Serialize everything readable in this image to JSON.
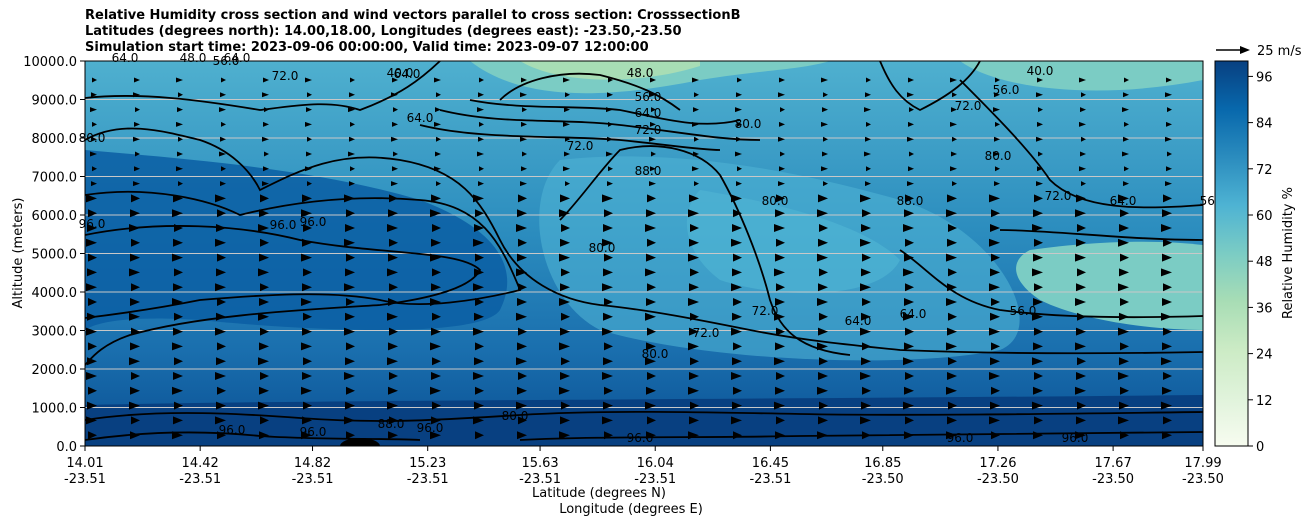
{
  "title_lines": [
    "Relative Humidity cross section and wind vectors parallel to cross section: CrosssectionB",
    "Latitudes (degrees north): 14.00,18.00, Longitudes (degrees east): -23.50,-23.50",
    "Simulation start time: 2023-09-06 00:00:00, Valid time: 2023-09-07 12:00:00"
  ],
  "chart_data": {
    "type": "heatmap",
    "ylabel": "Altitude (meters)",
    "xlabel_lines": [
      "Latitude (degrees N)",
      "Longitude (degrees E)"
    ],
    "ylim": [
      0,
      10000
    ],
    "yticks": [
      0,
      1000,
      2000,
      3000,
      4000,
      5000,
      6000,
      7000,
      8000,
      9000,
      10000
    ],
    "ytick_labels": [
      "0.0",
      "1000.0",
      "2000.0",
      "3000.0",
      "4000.0",
      "5000.0",
      "6000.0",
      "7000.0",
      "8000.0",
      "9000.0",
      "10000.0"
    ],
    "xlim": [
      14.01,
      17.99
    ],
    "xticks_lat": [
      "14.01",
      "14.42",
      "14.82",
      "15.23",
      "15.63",
      "16.04",
      "16.45",
      "16.85",
      "17.26",
      "17.67",
      "17.99"
    ],
    "xticks_lon": [
      "-23.51",
      "-23.51",
      "-23.51",
      "-23.51",
      "-23.51",
      "-23.51",
      "-23.51",
      "-23.50",
      "-23.50",
      "-23.50",
      "-23.50"
    ],
    "grid": "horizontal",
    "colorbar": {
      "label": "Relative Humidity %",
      "range": [
        0,
        100
      ],
      "ticks": [
        "0",
        "12",
        "24",
        "36",
        "48",
        "60",
        "72",
        "84",
        "96"
      ],
      "colormap": [
        "#f7fcf0",
        "#e0f3db",
        "#ccebc5",
        "#a8ddb5",
        "#7bccc4",
        "#4eb3d3",
        "#2b8cbe",
        "#0868ac",
        "#084081"
      ]
    },
    "wind_key": {
      "label": "25 m/s",
      "speed": 25
    },
    "contour_labels": [
      "40.0",
      "48.0",
      "56.0",
      "64.0",
      "72.0",
      "80.0",
      "88.0",
      "96.0"
    ]
  }
}
